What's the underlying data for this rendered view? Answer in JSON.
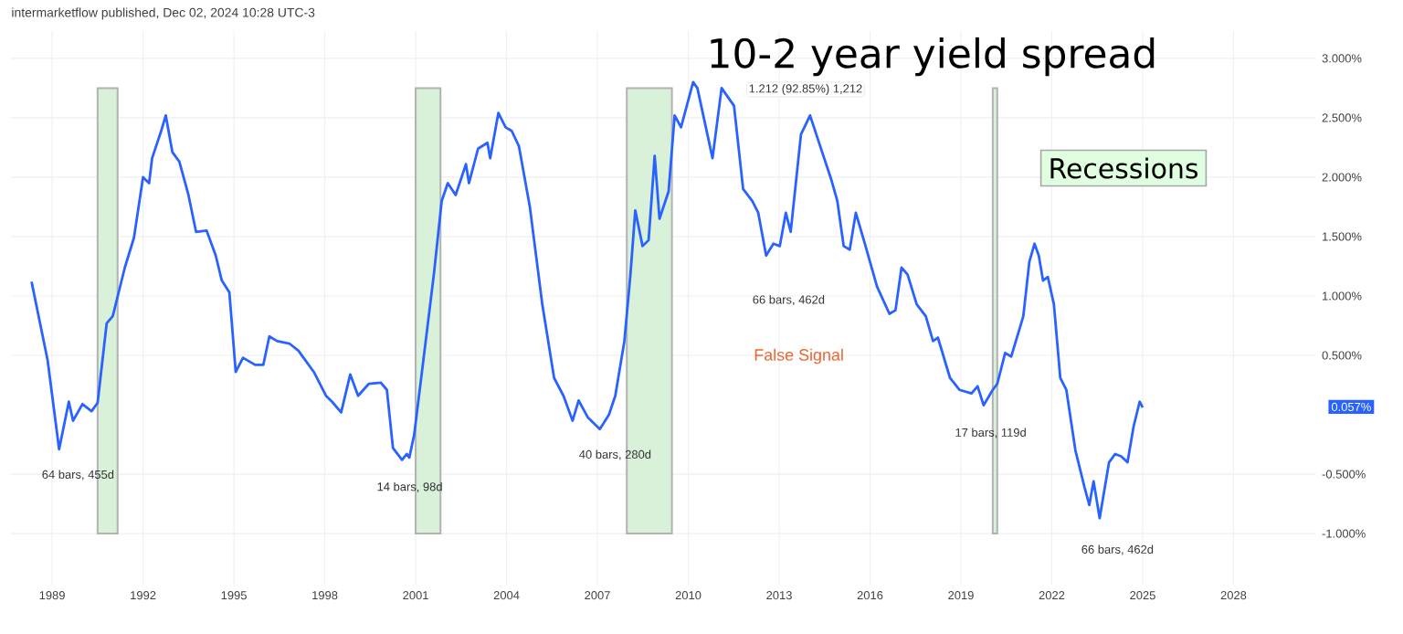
{
  "chart_data": {
    "type": "line",
    "title": "10-2 year yield spread",
    "xlim": [
      1987.64,
      2030.7
    ],
    "ylim": [
      -1.43,
      3.23
    ],
    "xticks": [
      1989,
      1992,
      1995,
      1998,
      2001,
      2004,
      2007,
      2010,
      2013,
      2016,
      2019,
      2022,
      2025,
      2028
    ],
    "yticks": [
      {
        "value": 3,
        "label": "3.000%"
      },
      {
        "value": 2.5,
        "label": "2.500%"
      },
      {
        "value": 2,
        "label": "2.000%"
      },
      {
        "value": 1.5,
        "label": "1.500%"
      },
      {
        "value": 1,
        "label": "1.000%"
      },
      {
        "value": 0.5,
        "label": "0.500%"
      },
      {
        "value": -0.5,
        "label": "-0.500%"
      },
      {
        "value": -1,
        "label": "-1.000%"
      }
    ],
    "grid": true,
    "legend": false,
    "series": [
      {
        "color": "#2962ff",
        "x": [
          1988.32,
          1988.85,
          1989.23,
          1989.55,
          1989.69,
          1990.0,
          1990.3,
          1990.5,
          1990.8,
          1991.0,
          1991.4,
          1991.7,
          1992.0,
          1992.2,
          1992.3,
          1992.6,
          1992.75,
          1992.97,
          1993.2,
          1993.5,
          1993.75,
          1994.1,
          1994.4,
          1994.6,
          1994.85,
          1995.06,
          1995.3,
          1995.7,
          1995.97,
          1996.17,
          1996.43,
          1996.83,
          1997.13,
          1997.64,
          1998.04,
          1998.24,
          1998.54,
          1998.84,
          1999.1,
          1999.45,
          1999.85,
          2000.05,
          2000.25,
          2000.55,
          2000.71,
          2000.79,
          2000.95,
          2001.26,
          2001.6,
          2001.86,
          2002.06,
          2002.32,
          2002.66,
          2002.76,
          2003.06,
          2003.37,
          2003.46,
          2003.73,
          2003.97,
          2004.17,
          2004.41,
          2004.77,
          2005.18,
          2005.57,
          2005.88,
          2006.18,
          2006.38,
          2006.68,
          2007.08,
          2007.38,
          2007.59,
          2007.89,
          2008.09,
          2008.25,
          2008.49,
          2008.69,
          2008.89,
          2009.05,
          2009.35,
          2009.55,
          2009.76,
          2010.16,
          2010.3,
          2010.8,
          2011.1,
          2011.51,
          2011.81,
          2012.11,
          2012.31,
          2012.57,
          2012.81,
          2013.02,
          2013.22,
          2013.38,
          2013.72,
          2014.02,
          2014.42,
          2014.72,
          2014.92,
          2015.13,
          2015.33,
          2015.53,
          2015.83,
          2016.23,
          2016.64,
          2016.84,
          2017.04,
          2017.24,
          2017.54,
          2017.84,
          2018.08,
          2018.24,
          2018.64,
          2018.95,
          2019.35,
          2019.55,
          2019.75,
          2020.05,
          2020.2,
          2020.46,
          2020.66,
          2021.06,
          2021.26,
          2021.43,
          2021.57,
          2021.71,
          2021.87,
          2022.07,
          2022.28,
          2022.48,
          2022.78,
          2023.08,
          2023.24,
          2023.38,
          2023.58,
          2023.89,
          2024.09,
          2024.29,
          2024.5,
          2024.7,
          2024.9,
          2025.0
        ],
        "values": [
          1.12,
          0.46,
          -0.29,
          0.11,
          -0.05,
          0.09,
          0.03,
          0.1,
          0.77,
          0.83,
          1.24,
          1.49,
          2.0,
          1.95,
          2.16,
          2.39,
          2.52,
          2.21,
          2.13,
          1.85,
          1.54,
          1.55,
          1.34,
          1.13,
          1.03,
          0.36,
          0.48,
          0.42,
          0.42,
          0.66,
          0.62,
          0.6,
          0.54,
          0.36,
          0.16,
          0.11,
          0.02,
          0.34,
          0.16,
          0.26,
          0.27,
          0.21,
          -0.28,
          -0.38,
          -0.33,
          -0.36,
          -0.17,
          0.47,
          1.18,
          1.8,
          1.95,
          1.85,
          2.11,
          1.95,
          2.24,
          2.29,
          2.16,
          2.54,
          2.42,
          2.39,
          2.26,
          1.75,
          0.93,
          0.31,
          0.16,
          -0.05,
          0.12,
          -0.02,
          -0.12,
          0.0,
          0.16,
          0.62,
          1.18,
          1.72,
          1.42,
          1.47,
          2.18,
          1.65,
          1.88,
          2.52,
          2.42,
          2.8,
          2.75,
          2.16,
          2.75,
          2.6,
          1.9,
          1.8,
          1.7,
          1.34,
          1.44,
          1.42,
          1.7,
          1.54,
          2.36,
          2.52,
          2.21,
          1.98,
          1.8,
          1.42,
          1.39,
          1.7,
          1.44,
          1.08,
          0.85,
          0.88,
          1.24,
          1.18,
          0.93,
          0.83,
          0.62,
          0.65,
          0.31,
          0.21,
          0.18,
          0.24,
          0.08,
          0.21,
          0.26,
          0.52,
          0.49,
          0.83,
          1.29,
          1.44,
          1.34,
          1.13,
          1.16,
          0.93,
          0.31,
          0.21,
          -0.3,
          -0.61,
          -0.76,
          -0.56,
          -0.87,
          -0.4,
          -0.33,
          -0.35,
          -0.4,
          -0.1,
          0.11,
          0.06
        ]
      }
    ],
    "bands": [
      {
        "axis": "x",
        "from": 1990.5,
        "to": 1991.16,
        "color": "#d9f0d9"
      },
      {
        "axis": "x",
        "from": 2001.0,
        "to": 2001.82,
        "color": "#d9f0d9"
      },
      {
        "axis": "x",
        "from": 2007.97,
        "to": 2009.46,
        "color": "#d9f0d9"
      },
      {
        "axis": "x",
        "from": 2020.05,
        "to": 2020.2,
        "color": "#d9f0d9"
      }
    ],
    "annotations": [
      "intermarketflow published, Dec 02, 2024 10:28 UTC-3",
      "Recessions",
      "1.212 (92.85%) 1,212",
      "64 bars, 455d",
      "14 bars, 98d",
      "40 bars, 280d",
      "66 bars, 462d",
      "False Signal",
      "17 bars, 119d",
      "66 bars, 462d",
      "0.057%"
    ]
  }
}
